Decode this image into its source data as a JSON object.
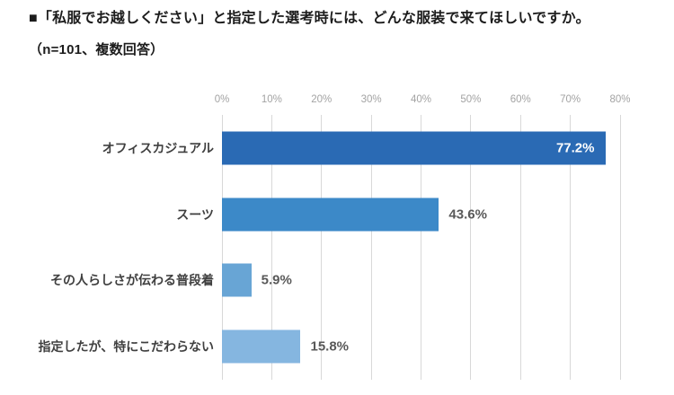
{
  "title": {
    "line1": "■「私服でお越しください」と指定した選考時には、どんな服装で来てほしいですか。",
    "line2": "（n=101、複数回答）"
  },
  "chart_data": {
    "type": "bar",
    "orientation": "horizontal",
    "title": "「私服でお越しください」と指定した選考時には、どんな服装で来てほしいですか。",
    "subtitle": "（n=101、複数回答）",
    "sample_note": "n=101、複数回答",
    "categories": [
      "オフィスカジュアル",
      "スーツ",
      "その人らしさが伝わる普段着",
      "指定したが、特にこだわらない"
    ],
    "values": [
      77.2,
      43.6,
      5.9,
      15.8
    ],
    "value_labels": [
      "77.2%",
      "43.6%",
      "5.9%",
      "15.8%"
    ],
    "value_label_positions": [
      "inside",
      "outside",
      "outside",
      "outside"
    ],
    "bar_colors": [
      "#2a6ab4",
      "#3c89c8",
      "#68a5d5",
      "#85b6e0"
    ],
    "axis": {
      "position": "top",
      "min": 0,
      "max": 80,
      "tick_step": 10,
      "tick_labels": [
        "0%",
        "10%",
        "20%",
        "30%",
        "40%",
        "50%",
        "60%",
        "70%",
        "80%"
      ]
    },
    "grid": true,
    "grid_color": "#d8d8d8",
    "xlabel": "",
    "ylabel": "",
    "legend": false,
    "colors": {
      "title_text": "#1c1c1c",
      "category_text": "#3f3f3f",
      "tick_text": "#a3a3a3",
      "value_outside_text": "#595959",
      "value_inside_text": "#ffffff",
      "background": "#ffffff"
    }
  }
}
